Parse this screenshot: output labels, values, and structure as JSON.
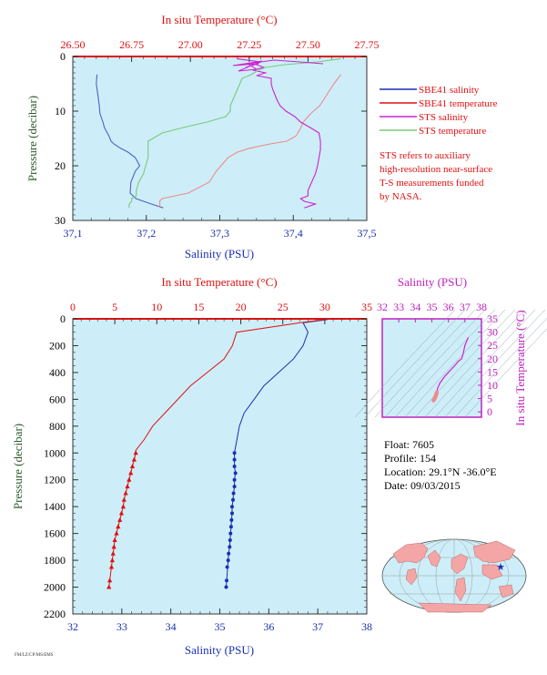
{
  "colors": {
    "plot_bg": "#cdeef8",
    "salinity": "#1a2fb0",
    "salinity_light": "#4a64c8",
    "temperature": "#e01010",
    "temperature_light": "#f08a8a",
    "sts_salinity": "#d020d0",
    "sts_temperature": "#7cc87c",
    "axis_green": "#2a5a2a",
    "ts_axis": "#c020c0"
  },
  "chart_data": [
    {
      "type": "line",
      "panel": "upper",
      "xlabel_bottom": "Salinity (PSU)",
      "xlabel_top": "In situ Temperature (°C)",
      "ylabel": "Pressure (decibar)",
      "xlim_salinity": [
        37.1,
        37.5
      ],
      "xlim_temperature": [
        26.5,
        27.75
      ],
      "ylim": [
        30,
        0
      ],
      "salinity_ticks": [
        "37,1",
        "37,2",
        "37,3",
        "37,4",
        "37,5"
      ],
      "temperature_ticks": [
        "26.50",
        "26.75",
        "27.00",
        "27.25",
        "27.50",
        "27.75"
      ],
      "pressure_ticks": [
        "0",
        "10",
        "20",
        "30"
      ],
      "series": [
        {
          "name": "SBE41 salinity",
          "axis": "salinity",
          "x": [
            37.133,
            37.132,
            37.134,
            37.136,
            37.137,
            37.141,
            37.143,
            37.149,
            37.152,
            37.156,
            37.165,
            37.175,
            37.185,
            37.191,
            37.185,
            37.179,
            37.178,
            37.186,
            37.194,
            37.207,
            37.223
          ],
          "y": [
            3.3,
            5,
            7,
            9,
            10.5,
            12,
            13,
            14.5,
            15.5,
            16,
            16.8,
            17.5,
            18.5,
            20,
            21,
            23,
            25,
            26,
            26.4,
            27,
            27.7
          ]
        },
        {
          "name": "SBE41 temperature",
          "axis": "temperature",
          "x": [
            27.64,
            27.61,
            27.58,
            27.55,
            27.51,
            27.48,
            27.47,
            27.45,
            27.41,
            27.34,
            27.25,
            27.2,
            27.16,
            27.13,
            27.11,
            27.08,
            26.99,
            26.88,
            26.87,
            26.87,
            26.87
          ],
          "y": [
            3.3,
            5,
            7,
            9,
            10.5,
            12,
            13,
            14.5,
            15.5,
            16,
            16.8,
            17.5,
            18.5,
            20,
            21,
            23,
            25,
            26,
            26.4,
            27,
            27.7
          ]
        },
        {
          "name": "STS salinity",
          "axis": "salinity",
          "x": [
            37.323,
            37.355,
            37.35,
            37.36,
            37.345,
            37.362,
            37.35,
            37.37,
            37.37,
            37.372,
            37.375,
            37.378,
            37.382,
            37.39,
            37.402,
            37.41,
            37.423,
            37.435,
            37.437,
            37.437,
            37.435,
            37.433,
            37.43,
            37.425,
            37.42,
            37.42,
            37.41,
            37.415,
            37.43,
            37.415
          ],
          "y": [
            0.4,
            1,
            1.5,
            2,
            2.5,
            3,
            3.5,
            4,
            5,
            6,
            7,
            8,
            9,
            10,
            11,
            12,
            13,
            14,
            15.5,
            17,
            18.5,
            20,
            21.5,
            23,
            24.5,
            25.5,
            26,
            26.5,
            27,
            27.7
          ]
        },
        {
          "name": "STS temperature",
          "axis": "temperature",
          "x": [
            27.64,
            27.54,
            27.4,
            27.32,
            27.29,
            27.27,
            27.25,
            27.22,
            27.21,
            27.2,
            27.19,
            27.18,
            27.17,
            27.17,
            27.15,
            27.07,
            26.97,
            26.88,
            26.82,
            26.82,
            26.82,
            26.81,
            26.8,
            26.78,
            26.77,
            26.77,
            26.75,
            26.75,
            26.74,
            26.74
          ],
          "y": [
            0.4,
            1,
            1.5,
            2,
            2.5,
            3,
            3.5,
            4,
            5,
            6,
            7,
            8,
            9,
            10,
            11,
            12,
            13,
            14,
            15.5,
            17,
            18.5,
            20,
            21.5,
            23,
            24.5,
            25.5,
            26,
            26.5,
            27,
            27.7
          ]
        }
      ]
    },
    {
      "type": "line",
      "panel": "lower",
      "xlabel_bottom": "Salinity (PSU)",
      "xlabel_top": "In situ Temperature (°C)",
      "ylabel": "Pressure (decibar)",
      "xlim_salinity": [
        32,
        38
      ],
      "xlim_temperature": [
        0,
        35
      ],
      "ylim": [
        2200,
        0
      ],
      "salinity_ticks": [
        "32",
        "33",
        "34",
        "35",
        "36",
        "37",
        "38"
      ],
      "temperature_ticks": [
        "0",
        "5",
        "10",
        "15",
        "20",
        "25",
        "30",
        "35"
      ],
      "pressure_ticks": [
        "0",
        "200",
        "400",
        "600",
        "800",
        "1000",
        "1200",
        "1400",
        "1600",
        "1800",
        "2000",
        "2200"
      ],
      "series": [
        {
          "name": "salinity",
          "axis": "salinity",
          "x": [
            37.2,
            36.7,
            36.8,
            36.7,
            36.5,
            36.2,
            35.9,
            35.7,
            35.5,
            35.4,
            35.35,
            35.3,
            35.3,
            35.3,
            35.32,
            35.3,
            35.3,
            35.28,
            35.27,
            35.25,
            35.25,
            35.24,
            35.23,
            35.22,
            35.21,
            35.2,
            35.18,
            35.17,
            35.15,
            35.13
          ],
          "y": [
            5,
            30,
            100,
            200,
            300,
            400,
            500,
            600,
            700,
            800,
            900,
            1000,
            1050,
            1100,
            1150,
            1200,
            1250,
            1300,
            1350,
            1400,
            1450,
            1500,
            1550,
            1600,
            1650,
            1700,
            1750,
            1800,
            1900,
            2000
          ]
        }
      ],
      "markers_salinity": {
        "x": [
          35.3,
          35.3,
          35.3,
          35.32,
          35.3,
          35.3,
          35.28,
          35.27,
          35.25,
          35.25,
          35.24,
          35.23,
          35.22,
          35.21,
          35.2,
          35.18,
          35.17,
          35.15,
          35.14,
          35.13
        ],
        "y": [
          1000,
          1050,
          1100,
          1150,
          1200,
          1250,
          1300,
          1350,
          1400,
          1450,
          1500,
          1550,
          1600,
          1650,
          1700,
          1750,
          1800,
          1850,
          1950,
          2000
        ]
      },
      "temperature_series": {
        "name": "temperature",
        "x": [
          30.0,
          27.0,
          19.5,
          19.0,
          18.0,
          16.0,
          14.0,
          12.5,
          11.0,
          9.5,
          8.5,
          7.5,
          7.5,
          7.3,
          7.1,
          6.9,
          6.7,
          6.5,
          6.3,
          6.1,
          6.0,
          5.8,
          5.6,
          5.4,
          5.2,
          5.0,
          4.9,
          4.7,
          4.5,
          4.3
        ],
        "y": [
          5,
          30,
          100,
          200,
          300,
          400,
          500,
          600,
          700,
          800,
          900,
          980,
          1000,
          1050,
          1100,
          1150,
          1200,
          1250,
          1300,
          1350,
          1400,
          1450,
          1500,
          1550,
          1600,
          1650,
          1700,
          1800,
          1900,
          2000
        ]
      },
      "markers_temperature": {
        "x": [
          7.5,
          7.3,
          7.1,
          6.9,
          6.7,
          6.5,
          6.3,
          6.1,
          6.0,
          5.8,
          5.6,
          5.4,
          5.2,
          5.0,
          4.9,
          4.8,
          4.7,
          4.6,
          4.4,
          4.3
        ],
        "y": [
          1000,
          1050,
          1100,
          1150,
          1200,
          1250,
          1300,
          1350,
          1400,
          1450,
          1500,
          1550,
          1600,
          1650,
          1700,
          1750,
          1800,
          1850,
          1950,
          2000
        ]
      }
    },
    {
      "type": "line",
      "panel": "ts-diagram",
      "xlabel_top": "Salinity (PSU)",
      "ylabel_right": "In situ Temperature (°C)",
      "xlim": [
        32,
        38
      ],
      "ylim": [
        -2,
        35
      ],
      "x_ticks": [
        "32",
        "33",
        "34",
        "35",
        "36",
        "37",
        "38"
      ],
      "y_ticks": [
        "0",
        "5",
        "10",
        "15",
        "20",
        "25",
        "30",
        "35"
      ],
      "series": [
        {
          "name": "ts-curve",
          "x": [
            35.1,
            35.2,
            35.3,
            35.35,
            35.5,
            35.8,
            36.1,
            36.4,
            36.6,
            36.8,
            36.9,
            37.0,
            37.2
          ],
          "y": [
            4.3,
            5.5,
            7.5,
            9,
            11,
            13.5,
            15.5,
            17.5,
            19,
            20,
            22,
            25,
            28
          ]
        }
      ]
    }
  ],
  "legend": {
    "items": [
      {
        "label": "SBE41 salinity",
        "color": "#1a2fb0"
      },
      {
        "label": "SBE41 temperature",
        "color": "#e01010"
      },
      {
        "label": "STS salinity",
        "color": "#d020d0"
      },
      {
        "label": "STS temperature",
        "color": "#7cc87c"
      }
    ],
    "note_lines": [
      "STS refers to auxiliary",
      "high-resolution near-surface",
      "T-S measurements funded",
      "by NASA."
    ]
  },
  "float_info": {
    "float_line": "Float:  7605",
    "profile_line": "Profile:  154",
    "location_line": "Location:  29.1°N  -36.0°E",
    "date_line": "Date:  09/03/2015"
  },
  "footer_text": "FM/LZ/CP/MS/EMS"
}
